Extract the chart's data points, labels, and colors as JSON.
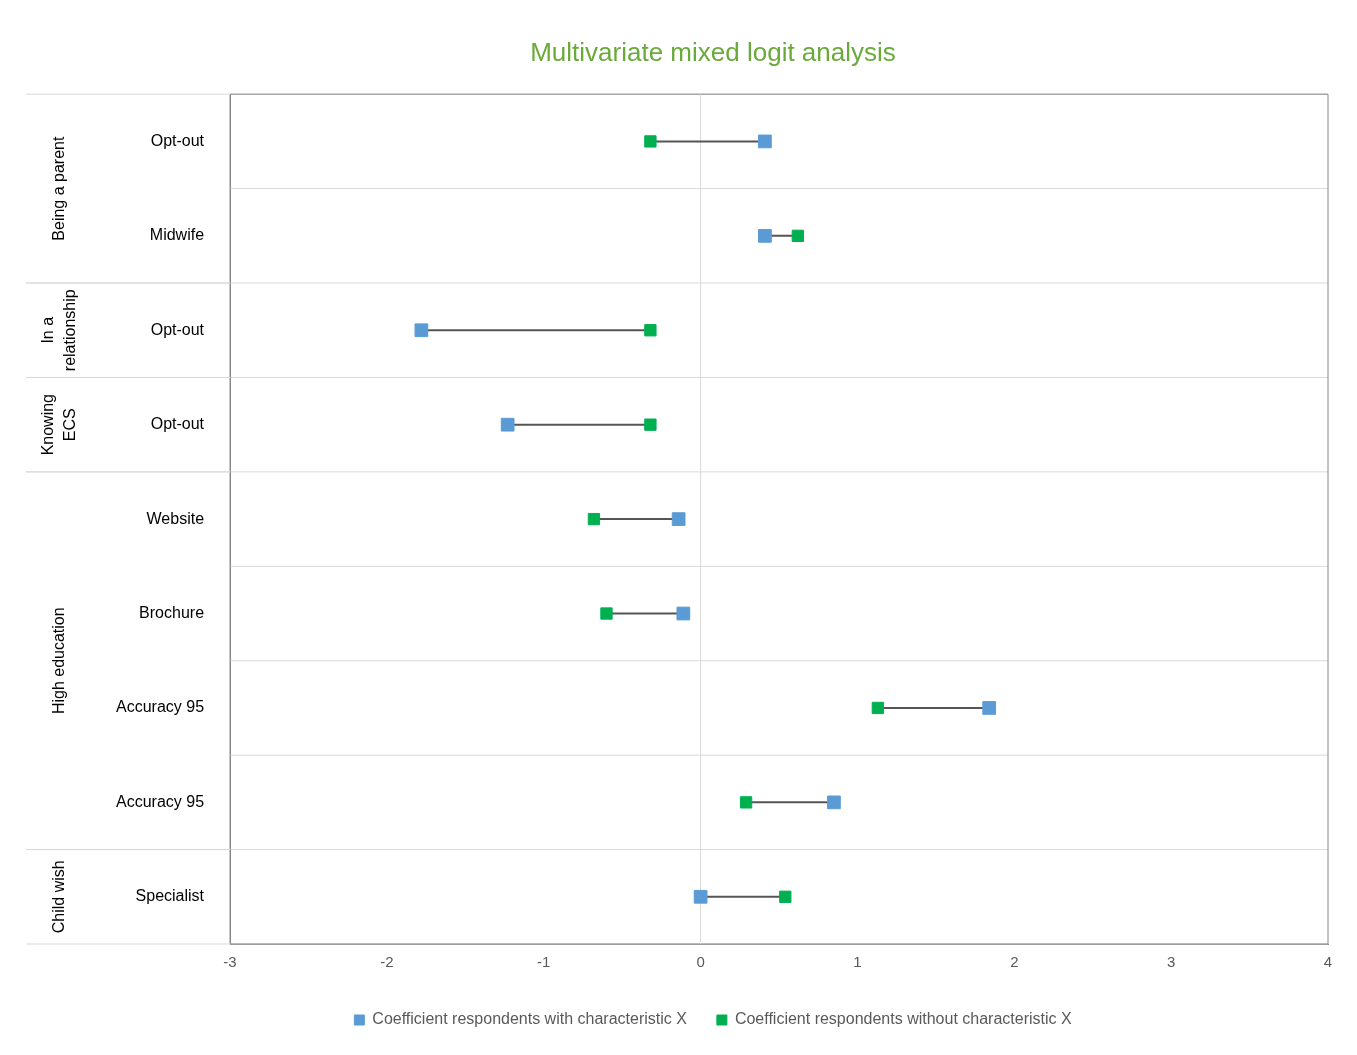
{
  "chart_data": {
    "type": "scatter",
    "title": "Multivariate mixed logit analysis",
    "orientation": "horizontal",
    "categories": [
      "Opt-out",
      "Midwife",
      "Opt-out",
      "Opt-out",
      "Website",
      "Brochure",
      "Accuracy 95",
      "Accuracy 95",
      "Specialist"
    ],
    "series": [
      {
        "name": "Coefficient respondents with characteristic X",
        "color": "#5b9bd5",
        "values": [
          0.41,
          0.41,
          -1.78,
          -1.23,
          -0.14,
          -0.11,
          1.84,
          0.85,
          0.0
        ]
      },
      {
        "name": "Coefficient respondents without characteristic X",
        "color": "#00b050",
        "values": [
          -0.32,
          0.62,
          -0.32,
          -0.32,
          -0.68,
          -0.6,
          1.13,
          0.29,
          0.54
        ]
      }
    ],
    "ref_lines": [
      {
        "axis": "x",
        "value": 0,
        "color": "#d9d9d9"
      }
    ],
    "xlim": [
      -3,
      4
    ],
    "xticks": [
      -3,
      -2,
      -1,
      0,
      1,
      2,
      3,
      4
    ],
    "grid": "y",
    "legend": "bottom",
    "marker": "square",
    "annotations": [
      "Being a parent",
      "In a relationship",
      "Knowing ECS",
      "High education",
      "Child wish"
    ]
  }
}
